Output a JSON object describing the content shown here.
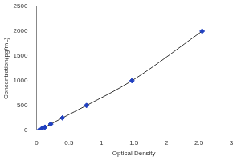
{
  "chart_data": {
    "type": "scatter",
    "x_label": "Optical Density",
    "y_label": "Concentration(pg/mL)",
    "x": [
      0.04,
      0.08,
      0.13,
      0.22,
      0.4,
      0.77,
      1.47,
      2.55
    ],
    "values": [
      0,
      31.25,
      62.5,
      125,
      250,
      500,
      1000,
      2000
    ],
    "color": "#2040c0",
    "marker": "diamond",
    "line_style": "solid",
    "xlim": [
      0,
      3
    ],
    "xticks": [
      0,
      0.5,
      1,
      1.5,
      2,
      2.5,
      3
    ],
    "ylim": [
      0,
      2500
    ],
    "yticks": [
      0,
      500,
      1000,
      1500,
      2000,
      2500
    ],
    "grid": false
  }
}
